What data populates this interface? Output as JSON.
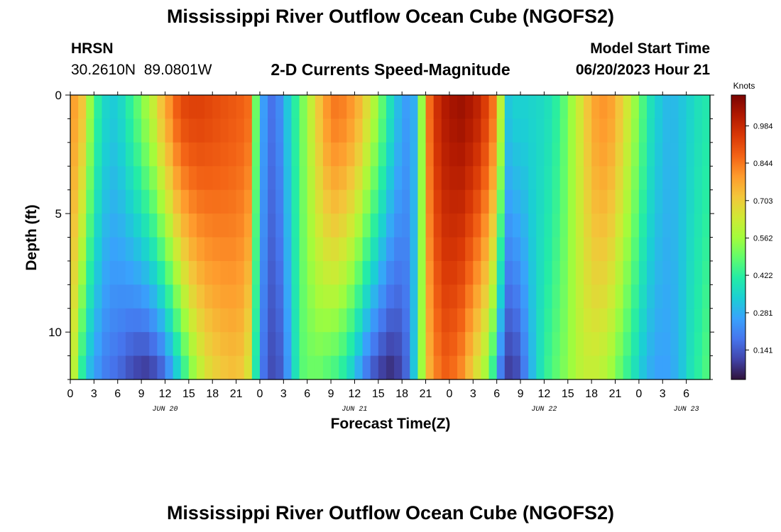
{
  "title": "Mississippi River Outflow Ocean Cube (NGOFS2)",
  "station": {
    "name": "HRSN",
    "coords": "30.2610N  89.0801W"
  },
  "subtitle": "2-D Currents Speed-Magnitude",
  "model": {
    "label": "Model Start Time",
    "start": "06/20/2023 Hour 21"
  },
  "footer_title": "Mississippi River Outflow Ocean Cube (NGOFS2)",
  "colors": {
    "scale": [
      "#30123b",
      "#4145ab",
      "#4675ed",
      "#39a2fc",
      "#1bcfd4",
      "#24eca6",
      "#61fc6c",
      "#a4fc3b",
      "#d1e834",
      "#f3c63a",
      "#fe9b2d",
      "#f36315",
      "#d93806",
      "#b11901",
      "#7a0402"
    ]
  },
  "chart_data": {
    "type": "heatmap",
    "title": "2-D Currents Speed-Magnitude",
    "xlabel": "Forecast Time(Z)",
    "ylabel": "Depth (ft)",
    "colorbar_label": "Knots",
    "colorbar_ticks": [
      0.141,
      0.281,
      0.422,
      0.562,
      0.703,
      0.844,
      0.984
    ],
    "value_range": [
      0.03,
      1.1
    ],
    "x_range_hours": [
      0,
      81
    ],
    "x_tick_labels": [
      "0",
      "3",
      "6",
      "9",
      "12",
      "15",
      "18",
      "21",
      "0",
      "3",
      "6",
      "9",
      "12",
      "15",
      "18",
      "21",
      "0",
      "3",
      "6",
      "9",
      "12",
      "15",
      "18",
      "21",
      "0",
      "3",
      "6"
    ],
    "date_labels": [
      {
        "label": "JUN 20",
        "hour": 12
      },
      {
        "label": "JUN 21",
        "hour": 36
      },
      {
        "label": "JUN 22",
        "hour": 60
      },
      {
        "label": "JUN 23",
        "hour": 78
      }
    ],
    "y_range": [
      0,
      12
    ],
    "y_ticks": [
      0,
      5,
      10
    ],
    "depth_levels": 12,
    "hour_step": 1,
    "surface_speed_by_hour": [
      0.78,
      0.72,
      0.55,
      0.42,
      0.35,
      0.33,
      0.36,
      0.42,
      0.48,
      0.55,
      0.62,
      0.72,
      0.8,
      0.88,
      0.92,
      0.93,
      0.93,
      0.92,
      0.91,
      0.9,
      0.89,
      0.88,
      0.86,
      0.5,
      0.25,
      0.18,
      0.22,
      0.32,
      0.42,
      0.52,
      0.62,
      0.72,
      0.8,
      0.84,
      0.83,
      0.8,
      0.75,
      0.67,
      0.58,
      0.48,
      0.38,
      0.3,
      0.25,
      0.28,
      0.55,
      0.86,
      0.97,
      1.02,
      1.04,
      1.05,
      1.03,
      1.0,
      0.94,
      0.85,
      0.6,
      0.32,
      0.34,
      0.34,
      0.35,
      0.36,
      0.38,
      0.42,
      0.48,
      0.56,
      0.64,
      0.72,
      0.78,
      0.8,
      0.78,
      0.72,
      0.64,
      0.55,
      0.46,
      0.38,
      0.33,
      0.3,
      0.3,
      0.32,
      0.35,
      0.38,
      0.4,
      0.4
    ],
    "bottom_speed_by_hour": [
      0.6,
      0.42,
      0.3,
      0.24,
      0.2,
      0.18,
      0.16,
      0.13,
      0.11,
      0.1,
      0.12,
      0.16,
      0.24,
      0.34,
      0.45,
      0.55,
      0.62,
      0.67,
      0.7,
      0.72,
      0.73,
      0.72,
      0.66,
      0.4,
      0.18,
      0.12,
      0.14,
      0.24,
      0.38,
      0.48,
      0.5,
      0.5,
      0.48,
      0.46,
      0.42,
      0.36,
      0.28,
      0.2,
      0.14,
      0.1,
      0.08,
      0.1,
      0.16,
      0.32,
      0.56,
      0.76,
      0.84,
      0.88,
      0.86,
      0.82,
      0.74,
      0.66,
      0.58,
      0.44,
      0.2,
      0.1,
      0.12,
      0.2,
      0.3,
      0.38,
      0.44,
      0.48,
      0.52,
      0.56,
      0.6,
      0.62,
      0.62,
      0.6,
      0.56,
      0.5,
      0.44,
      0.38,
      0.32,
      0.28,
      0.26,
      0.26,
      0.28,
      0.32,
      0.38,
      0.42,
      0.46,
      0.48
    ]
  }
}
